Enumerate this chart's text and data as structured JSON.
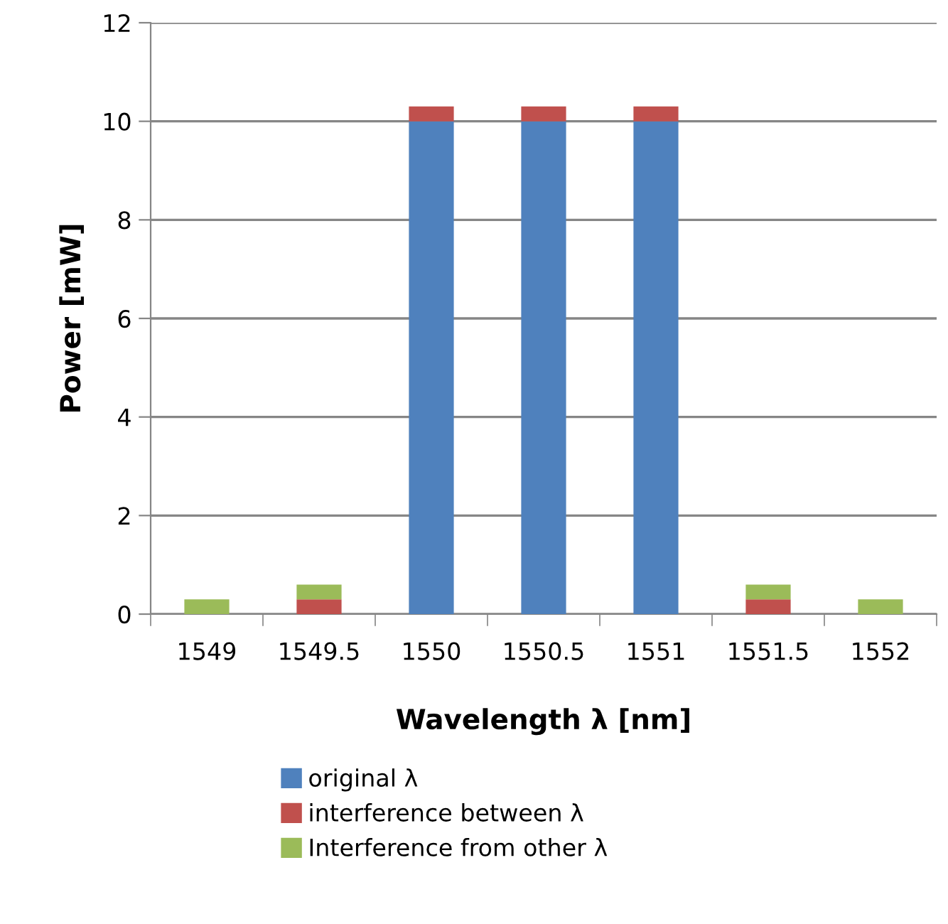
{
  "chart_data": {
    "type": "bar",
    "stacked": true,
    "xlabel": "Wavelength λ [nm]",
    "ylabel": "Power [mW]",
    "categories": [
      "1549",
      "1549.5",
      "1550",
      "1550.5",
      "1551",
      "1551.5",
      "1552"
    ],
    "series": [
      {
        "name": "original λ",
        "color": "#4f81bd",
        "values": [
          0,
          0,
          10,
          10,
          10,
          0,
          0
        ]
      },
      {
        "name": "interference between λ",
        "color": "#c0504d",
        "values": [
          0,
          0.3,
          0.3,
          0.3,
          0.3,
          0.3,
          0
        ]
      },
      {
        "name": "Interference from other λ",
        "color": "#9bbb59",
        "values": [
          0.3,
          0.3,
          0,
          0,
          0,
          0.3,
          0.3
        ]
      }
    ],
    "ylim": [
      0,
      12
    ],
    "yticks": [
      0,
      2,
      4,
      6,
      8,
      10,
      12
    ],
    "grid": "y",
    "legend": "bottom"
  }
}
